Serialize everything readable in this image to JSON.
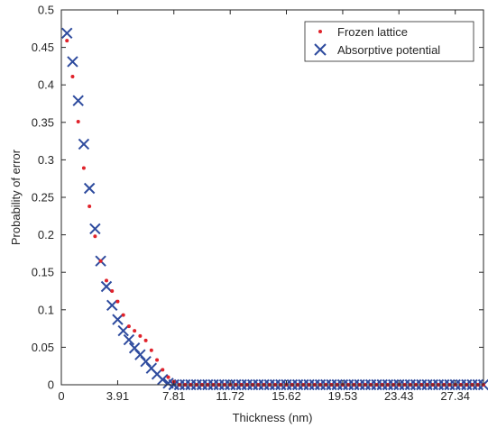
{
  "chart_data": {
    "type": "scatter",
    "xlabel": "Thickness (nm)",
    "ylabel": "Probability of error",
    "xlim": [
      0,
      29.3
    ],
    "ylim": [
      0,
      0.5
    ],
    "xticks": [
      0,
      3.91,
      7.81,
      11.72,
      15.62,
      19.53,
      23.43,
      27.34
    ],
    "yticks": [
      0,
      0.05,
      0.1,
      0.15,
      0.2,
      0.25,
      0.3,
      0.35,
      0.4,
      0.45,
      0.5
    ],
    "xtick_labels": [
      "0",
      "3.91",
      "7.81",
      "11.72",
      "15.62",
      "19.53",
      "23.43",
      "27.34"
    ],
    "ytick_labels": [
      "0",
      "0.05",
      "0.1",
      "0.15",
      "0.2",
      "0.25",
      "0.3",
      "0.35",
      "0.4",
      "0.45",
      "0.5"
    ],
    "legend_position": "top-right",
    "series": [
      {
        "name": "Frozen lattice",
        "marker": "dot",
        "color": "#e0222a",
        "x": [
          0.39,
          0.78,
          1.17,
          1.56,
          1.95,
          2.34,
          2.73,
          3.13,
          3.52,
          3.91,
          4.3,
          4.69,
          5.08,
          5.47,
          5.86,
          6.25,
          6.64,
          7.03,
          7.42,
          7.81,
          8.2,
          8.59,
          8.98,
          9.38,
          9.77,
          10.16,
          10.55,
          10.94,
          11.33,
          11.72,
          12.11,
          12.5,
          12.89,
          13.28,
          13.67,
          14.06,
          14.45,
          14.84,
          15.23,
          15.62,
          16.02,
          16.41,
          16.8,
          17.19,
          17.58,
          17.97,
          18.36,
          18.75,
          19.14,
          19.53,
          19.92,
          20.31,
          20.7,
          21.09,
          21.48,
          21.88,
          22.27,
          22.66,
          23.05,
          23.44,
          23.83,
          24.22,
          24.61,
          25.0,
          25.39,
          25.78,
          26.17,
          26.56,
          26.95,
          27.34,
          27.73,
          28.13,
          28.52,
          28.91,
          29.3
        ],
        "y": [
          0.459,
          0.411,
          0.351,
          0.289,
          0.238,
          0.198,
          0.165,
          0.139,
          0.125,
          0.111,
          0.093,
          0.078,
          0.072,
          0.065,
          0.059,
          0.046,
          0.033,
          0.02,
          0.01,
          0.004,
          0,
          0,
          0,
          0,
          0,
          0,
          0,
          0,
          0,
          0,
          0,
          0,
          0,
          0,
          0,
          0,
          0,
          0,
          0,
          0,
          0,
          0,
          0,
          0,
          0,
          0,
          0,
          0,
          0,
          0,
          0,
          0,
          0,
          0,
          0,
          0,
          0,
          0,
          0,
          0,
          0,
          0,
          0,
          0,
          0,
          0,
          0,
          0,
          0,
          0,
          0,
          0,
          0,
          0,
          0
        ]
      },
      {
        "name": "Absorptive potential",
        "marker": "x",
        "color": "#2e4b9e",
        "x": [
          0.39,
          0.78,
          1.17,
          1.56,
          1.95,
          2.34,
          2.73,
          3.13,
          3.52,
          3.91,
          4.3,
          4.69,
          5.08,
          5.47,
          5.86,
          6.25,
          6.64,
          7.03,
          7.42,
          7.81,
          8.2,
          8.59,
          8.98,
          9.38,
          9.77,
          10.16,
          10.55,
          10.94,
          11.33,
          11.72,
          12.11,
          12.5,
          12.89,
          13.28,
          13.67,
          14.06,
          14.45,
          14.84,
          15.23,
          15.62,
          16.02,
          16.41,
          16.8,
          17.19,
          17.58,
          17.97,
          18.36,
          18.75,
          19.14,
          19.53,
          19.92,
          20.31,
          20.7,
          21.09,
          21.48,
          21.88,
          22.27,
          22.66,
          23.05,
          23.44,
          23.83,
          24.22,
          24.61,
          25.0,
          25.39,
          25.78,
          26.17,
          26.56,
          26.95,
          27.34,
          27.73,
          28.13,
          28.52,
          28.91,
          29.3
        ],
        "y": [
          0.469,
          0.431,
          0.379,
          0.321,
          0.262,
          0.208,
          0.165,
          0.131,
          0.106,
          0.087,
          0.072,
          0.06,
          0.049,
          0.04,
          0.031,
          0.022,
          0.014,
          0.007,
          0.002,
          0,
          0,
          0,
          0,
          0,
          0,
          0,
          0,
          0,
          0,
          0,
          0,
          0,
          0,
          0,
          0,
          0,
          0,
          0,
          0,
          0,
          0,
          0,
          0,
          0,
          0,
          0,
          0,
          0,
          0,
          0,
          0,
          0,
          0,
          0,
          0,
          0,
          0,
          0,
          0,
          0,
          0,
          0,
          0,
          0,
          0,
          0,
          0,
          0,
          0,
          0,
          0,
          0,
          0,
          0,
          0
        ]
      }
    ]
  }
}
